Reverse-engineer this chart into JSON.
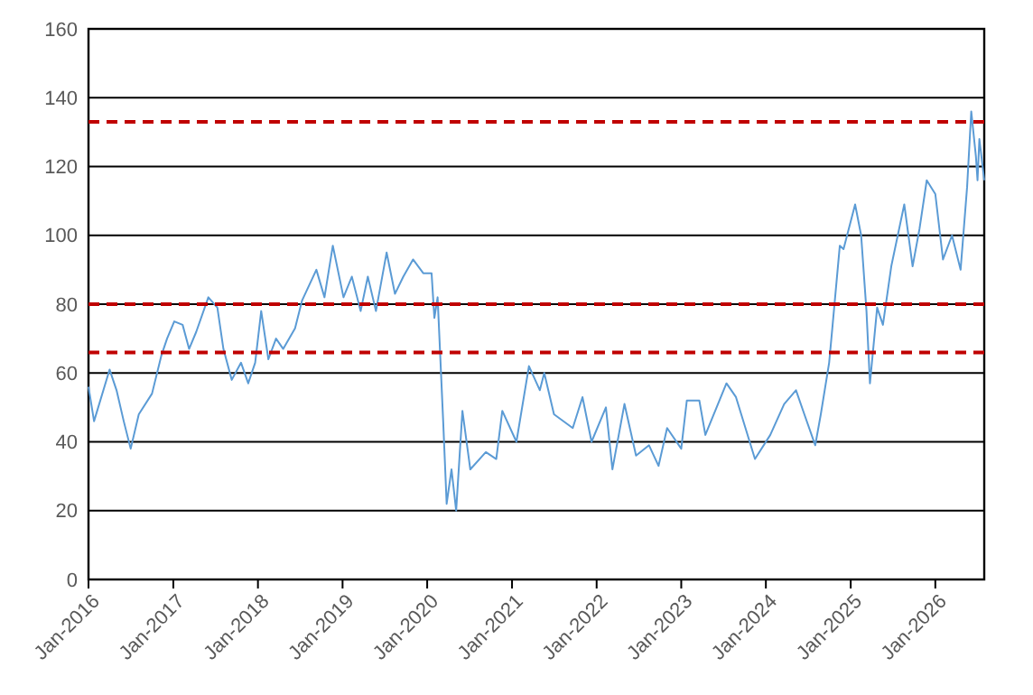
{
  "chart_data": {
    "type": "line",
    "grid": "y",
    "line_style": "solid",
    "marker": "none",
    "x": [
      "2016-01-01",
      "2016-01-25",
      "2016-04-01",
      "2016-05-01",
      "2016-06-01",
      "2016-07-01",
      "2016-08-05",
      "2016-10-01",
      "2016-11-10",
      "2016-12-05",
      "2017-01-05",
      "2017-02-10",
      "2017-03-10",
      "2017-04-10",
      "2017-06-01",
      "2017-07-10",
      "2017-08-05",
      "2017-09-10",
      "2017-10-20",
      "2017-11-20",
      "2017-12-20",
      "2018-01-15",
      "2018-02-15",
      "2018-03-20",
      "2018-04-20",
      "2018-06-10",
      "2018-07-10",
      "2018-09-10",
      "2018-10-15",
      "2018-11-20",
      "2019-01-05",
      "2019-02-10",
      "2019-03-20",
      "2019-04-20",
      "2019-05-25",
      "2019-07-10",
      "2019-08-15",
      "2019-09-20",
      "2019-11-01",
      "2019-12-15",
      "2020-01-20",
      "2020-02-01",
      "2020-02-15",
      "2020-03-10",
      "2020-03-25",
      "2020-04-15",
      "2020-05-05",
      "2020-06-01",
      "2020-07-05",
      "2020-09-10",
      "2020-10-25",
      "2020-11-20",
      "2021-01-20",
      "2021-03-15",
      "2021-05-01",
      "2021-05-20",
      "2021-07-01",
      "2021-09-20",
      "2021-11-01",
      "2021-12-10",
      "2022-02-10",
      "2022-03-10",
      "2022-05-01",
      "2022-06-20",
      "2022-08-15",
      "2022-09-25",
      "2022-11-01",
      "2023-01-01",
      "2023-01-25",
      "2023-03-20",
      "2023-04-15",
      "2023-07-15",
      "2023-08-25",
      "2023-11-15",
      "2024-01-20",
      "2024-03-20",
      "2024-05-10",
      "2024-06-15",
      "2024-08-01",
      "2024-08-25",
      "2024-09-30",
      "2024-10-15",
      "2024-11-15",
      "2024-12-01",
      "2025-01-20",
      "2025-02-15",
      "2025-03-10",
      "2025-03-25",
      "2025-04-25",
      "2025-05-20",
      "2025-06-25",
      "2025-08-20",
      "2025-09-25",
      "2025-10-25",
      "2025-11-25",
      "2026-01-01",
      "2026-02-03",
      "2026-03-14",
      "2026-04-20",
      "2026-05-18",
      "2026-06-05",
      "2026-06-25",
      "2026-07-02",
      "2026-07-10",
      "2026-07-31"
    ],
    "series": [
      {
        "color": "#5b9bd5",
        "values": [
          56,
          46,
          61,
          55,
          46,
          38,
          48,
          54,
          65,
          70,
          75,
          74,
          67,
          72,
          82,
          79,
          67,
          58,
          63,
          57,
          63,
          78,
          64,
          70,
          67,
          73,
          81,
          90,
          82,
          97,
          82,
          88,
          78,
          88,
          78,
          95,
          83,
          88,
          93,
          89,
          89,
          76,
          82,
          46,
          22,
          32,
          20,
          49,
          32,
          37,
          35,
          49,
          40,
          62,
          55,
          60,
          48,
          44,
          53,
          40,
          50,
          32,
          51,
          36,
          39,
          33,
          44,
          38,
          52,
          52,
          42,
          57,
          53,
          35,
          42,
          51,
          55,
          48,
          39,
          48,
          63,
          74,
          97,
          96,
          109,
          100,
          78,
          57,
          79,
          74,
          91,
          109,
          91,
          102,
          116,
          112,
          93,
          100,
          90,
          114,
          136,
          123,
          116,
          128,
          116
        ]
      }
    ],
    "xlim": [
      "2016-01-01",
      "2026-07-31"
    ],
    "xticks": [
      {
        "value": "2016-01-01",
        "label": "Jan-2016"
      },
      {
        "value": "2017-01-01",
        "label": "Jan-2017"
      },
      {
        "value": "2018-01-01",
        "label": "Jan-2018"
      },
      {
        "value": "2019-01-01",
        "label": "Jan-2019"
      },
      {
        "value": "2020-01-01",
        "label": "Jan-2020"
      },
      {
        "value": "2021-01-01",
        "label": "Jan-2021"
      },
      {
        "value": "2022-01-01",
        "label": "Jan-2022"
      },
      {
        "value": "2023-01-01",
        "label": "Jan-2023"
      },
      {
        "value": "2024-01-01",
        "label": "Jan-2024"
      },
      {
        "value": "2025-01-01",
        "label": "Jan-2025"
      },
      {
        "value": "2026-01-01",
        "label": "Jan-2026"
      }
    ],
    "ylim": [
      0,
      160
    ],
    "yticks": [
      0,
      20,
      40,
      60,
      80,
      100,
      120,
      140,
      160
    ],
    "ref_lines": [
      {
        "axis": "y",
        "value": 133,
        "color": "#c00000",
        "line_style": "dashed"
      },
      {
        "axis": "y",
        "value": 80,
        "color": "#c00000",
        "line_style": "dashed"
      },
      {
        "axis": "y",
        "value": 66,
        "color": "#c00000",
        "line_style": "dashed"
      }
    ]
  }
}
